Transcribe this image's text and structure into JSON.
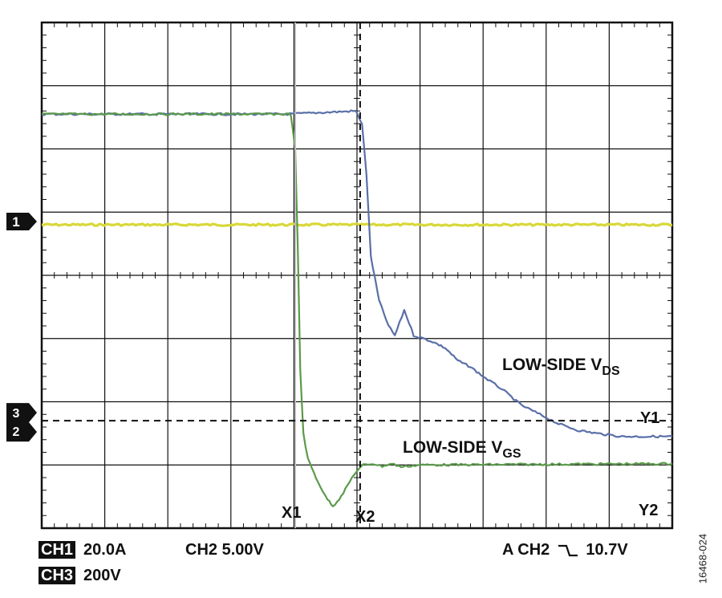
{
  "chart_data": {
    "type": "line",
    "x_range": [
      0,
      10
    ],
    "y_range": [
      -4,
      4
    ],
    "grid": true,
    "series": [
      {
        "name": "LOW-SIDE V_DS",
        "color": "#5a6fa8",
        "points": [
          [
            0,
            2.55
          ],
          [
            3.9,
            2.55
          ],
          [
            4.98,
            2.6
          ],
          [
            5.08,
            2.4
          ],
          [
            5.15,
            1.6
          ],
          [
            5.22,
            0.3
          ],
          [
            5.35,
            -0.4
          ],
          [
            5.5,
            -0.8
          ],
          [
            5.6,
            -0.95
          ],
          [
            5.75,
            -0.55
          ],
          [
            5.9,
            -0.95
          ],
          [
            6.05,
            -1.0
          ],
          [
            6.2,
            -1.05
          ],
          [
            6.4,
            -1.15
          ],
          [
            6.6,
            -1.35
          ],
          [
            6.8,
            -1.45
          ],
          [
            7.0,
            -1.6
          ],
          [
            7.3,
            -1.8
          ],
          [
            7.6,
            -2.05
          ],
          [
            7.9,
            -2.2
          ],
          [
            8.2,
            -2.35
          ],
          [
            8.5,
            -2.45
          ],
          [
            8.8,
            -2.5
          ],
          [
            9.2,
            -2.55
          ],
          [
            10,
            -2.55
          ]
        ]
      },
      {
        "name": "LOW-SIDE V_GS",
        "color": "#5b9a4a",
        "points": [
          [
            0,
            2.55
          ],
          [
            3.95,
            2.55
          ],
          [
            4.02,
            2.0
          ],
          [
            4.06,
            0.5
          ],
          [
            4.1,
            -1.5
          ],
          [
            4.15,
            -2.5
          ],
          [
            4.22,
            -2.9
          ],
          [
            4.35,
            -3.2
          ],
          [
            4.5,
            -3.5
          ],
          [
            4.62,
            -3.65
          ],
          [
            4.75,
            -3.5
          ],
          [
            4.95,
            -3.15
          ],
          [
            5.1,
            -3.0
          ],
          [
            5.25,
            -2.98
          ],
          [
            5.4,
            -3.02
          ],
          [
            5.55,
            -2.98
          ],
          [
            5.7,
            -3.03
          ],
          [
            6.0,
            -3.0
          ],
          [
            10,
            -2.98
          ]
        ]
      },
      {
        "name": "CH1",
        "color": "#d8d83a",
        "points": [
          [
            0,
            0.8
          ],
          [
            10,
            0.8
          ]
        ]
      }
    ],
    "cursors": {
      "X1": 4.02,
      "X2": 5.05,
      "Y1": -2.3,
      "Y2": -4
    },
    "channel_markers": [
      "1",
      "3",
      "2"
    ],
    "trace_labels": {
      "vds_main": "LOW-SIDE V",
      "vds_sub": "DS",
      "vgs_main": "LOW-SIDE V",
      "vgs_sub": "GS"
    },
    "cursor_labels": {
      "x1": "X1",
      "x2": "X2",
      "y1": "Y1",
      "y2": "Y2"
    }
  },
  "settings": {
    "ch1_tag": "CH1",
    "ch1_value": "20.0A",
    "ch2": "CH2 5.00V",
    "ch3_tag": "CH3",
    "ch3_value": "200V",
    "trigger_source": "A  CH2",
    "trigger_symbol": "⌉⌊",
    "trigger_level": "10.7V"
  },
  "figure_id": "16468-024"
}
